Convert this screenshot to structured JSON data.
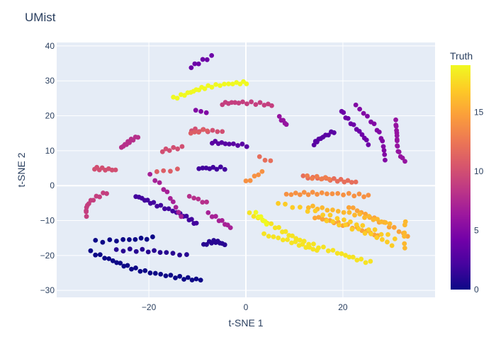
{
  "chart_data": {
    "type": "scatter",
    "title": "UMist",
    "xlabel": "t-SNE 1",
    "ylabel": "t-SNE 2",
    "xlim": [
      -39,
      39
    ],
    "ylim": [
      -32,
      41
    ],
    "x_ticks": [
      -20,
      0,
      20
    ],
    "y_ticks": [
      -30,
      -20,
      -10,
      0,
      10,
      20,
      30,
      40
    ],
    "grid": true,
    "colorbar": {
      "title": "Truth",
      "range": [
        0,
        19
      ],
      "ticks": [
        0,
        5,
        10,
        15
      ],
      "colorscale": "plasma"
    },
    "colorscale_stops": [
      "#0d0887",
      "#46039f",
      "#7201a8",
      "#9c179e",
      "#bd3786",
      "#d8576b",
      "#ed7953",
      "#fb9f3a",
      "#fdca26",
      "#f0f921"
    ],
    "clusters": [
      {
        "truth": 0,
        "from": [
          -32,
          -19
        ],
        "to": [
          -9,
          -27
        ],
        "n": 26,
        "curve": -1.5
      },
      {
        "truth": 0,
        "from": [
          -31,
          -16
        ],
        "to": [
          -19,
          -15
        ],
        "n": 10,
        "curve": 0
      },
      {
        "truth": 1,
        "from": [
          -27,
          -18.5
        ],
        "to": [
          -12,
          -20
        ],
        "n": 12,
        "curve": 0.5
      },
      {
        "truth": 1,
        "from": [
          -9,
          -17
        ],
        "to": [
          -4,
          -17
        ],
        "n": 10,
        "curve": 1
      },
      {
        "truth": 2,
        "from": [
          -23,
          -3
        ],
        "to": [
          -10,
          -11
        ],
        "n": 20,
        "curve": 0.5
      },
      {
        "truth": 2,
        "from": [
          -10,
          5
        ],
        "to": [
          -4,
          5
        ],
        "n": 8,
        "curve": 0
      },
      {
        "truth": 3,
        "from": [
          -7,
          12.5
        ],
        "to": [
          0,
          11.5
        ],
        "n": 10,
        "curve": 0
      },
      {
        "truth": 3,
        "from": [
          14,
          12
        ],
        "to": [
          18,
          15.5
        ],
        "n": 10,
        "curve": 0
      },
      {
        "truth": 4,
        "from": [
          -11,
          34
        ],
        "to": [
          -7,
          37
        ],
        "n": 6,
        "curve": 0
      },
      {
        "truth": 4,
        "from": [
          20,
          21.5
        ],
        "to": [
          25,
          12
        ],
        "n": 12,
        "curve": 0
      },
      {
        "truth": 5,
        "from": [
          -10,
          21.5
        ],
        "to": [
          -8,
          21
        ],
        "n": 3,
        "curve": 0
      },
      {
        "truth": 5,
        "from": [
          23,
          23
        ],
        "to": [
          29,
          7.5
        ],
        "n": 14,
        "curve": 1
      },
      {
        "truth": 6,
        "from": [
          31,
          18.5
        ],
        "to": [
          33,
          7
        ],
        "n": 15,
        "curve": -1
      },
      {
        "truth": 6,
        "from": [
          7,
          19.5
        ],
        "to": [
          8,
          17.5
        ],
        "n": 5,
        "curve": 0
      },
      {
        "truth": 7,
        "from": [
          -8,
          -8
        ],
        "to": [
          -3,
          -12
        ],
        "n": 8,
        "curve": 0
      },
      {
        "truth": 7,
        "from": [
          -20,
          3
        ],
        "to": [
          -13,
          -9
        ],
        "n": 10,
        "curve": 0.5
      },
      {
        "truth": 8,
        "from": [
          -26,
          11
        ],
        "to": [
          -22,
          14
        ],
        "n": 10,
        "curve": 0
      },
      {
        "truth": 8,
        "from": [
          -12,
          -3
        ],
        "to": [
          -8,
          -5
        ],
        "n": 5,
        "curve": 0
      },
      {
        "truth": 9,
        "from": [
          -33,
          -8.5
        ],
        "to": [
          -29,
          -2
        ],
        "n": 12,
        "curve": 1
      },
      {
        "truth": 9,
        "from": [
          -5,
          23.5
        ],
        "to": [
          5,
          23
        ],
        "n": 14,
        "curve": 0.5
      },
      {
        "truth": 10,
        "from": [
          -31,
          5
        ],
        "to": [
          -27,
          4.5
        ],
        "n": 8,
        "curve": 0
      },
      {
        "truth": 10,
        "from": [
          -17,
          10
        ],
        "to": [
          -13,
          11
        ],
        "n": 6,
        "curve": 0
      },
      {
        "truth": 10,
        "from": [
          -11,
          16
        ],
        "to": [
          -5,
          15.5
        ],
        "n": 8,
        "curve": 0
      },
      {
        "truth": 11,
        "from": [
          -18,
          4
        ],
        "to": [
          -14,
          4.5
        ],
        "n": 4,
        "curve": 0
      },
      {
        "truth": 11,
        "from": [
          -11,
          15
        ],
        "to": [
          -8,
          16
        ],
        "n": 5,
        "curve": 0
      },
      {
        "truth": 12,
        "from": [
          12,
          2.5
        ],
        "to": [
          23,
          1
        ],
        "n": 14,
        "curve": 0
      },
      {
        "truth": 12,
        "from": [
          3,
          8
        ],
        "to": [
          5,
          7
        ],
        "n": 3,
        "curve": 0
      },
      {
        "truth": 13,
        "from": [
          12.5,
          2.5
        ],
        "to": [
          17,
          2
        ],
        "n": 6,
        "curve": 0
      },
      {
        "truth": 14,
        "from": [
          3,
          4
        ],
        "to": [
          0,
          1
        ],
        "n": 5,
        "curve": 0
      },
      {
        "truth": 14,
        "from": [
          8,
          -2.5
        ],
        "to": [
          25,
          -3
        ],
        "n": 18,
        "curve": 0.5
      },
      {
        "truth": 15,
        "from": [
          14,
          -9
        ],
        "to": [
          27,
          -14.5
        ],
        "n": 16,
        "curve": 0.5
      },
      {
        "truth": 15,
        "from": [
          21,
          -6
        ],
        "to": [
          33,
          -14.5
        ],
        "n": 14,
        "curve": 0.5
      },
      {
        "truth": 16,
        "from": [
          33,
          -10
        ],
        "to": [
          33,
          -18
        ],
        "n": 6,
        "curve": 0
      },
      {
        "truth": 16,
        "from": [
          13,
          -6
        ],
        "to": [
          30,
          -11
        ],
        "n": 18,
        "curve": 0.5
      },
      {
        "truth": 17,
        "from": [
          7,
          -5
        ],
        "to": [
          31,
          -15
        ],
        "n": 18,
        "curve": 0.5
      },
      {
        "truth": 17,
        "from": [
          17,
          -10
        ],
        "to": [
          30,
          -17
        ],
        "n": 12,
        "curve": 0.5
      },
      {
        "truth": 18,
        "from": [
          1,
          -8
        ],
        "to": [
          26,
          -22
        ],
        "n": 30,
        "curve": -1.5
      },
      {
        "truth": 18,
        "from": [
          4,
          -14
        ],
        "to": [
          15,
          -18.5
        ],
        "n": 14,
        "curve": 0
      },
      {
        "truth": 19,
        "from": [
          -15,
          25
        ],
        "to": [
          0,
          29.5
        ],
        "n": 22,
        "curve": 1
      },
      {
        "truth": 19,
        "from": [
          2,
          -8
        ],
        "to": [
          4,
          -11
        ],
        "n": 6,
        "curve": 0
      }
    ]
  }
}
